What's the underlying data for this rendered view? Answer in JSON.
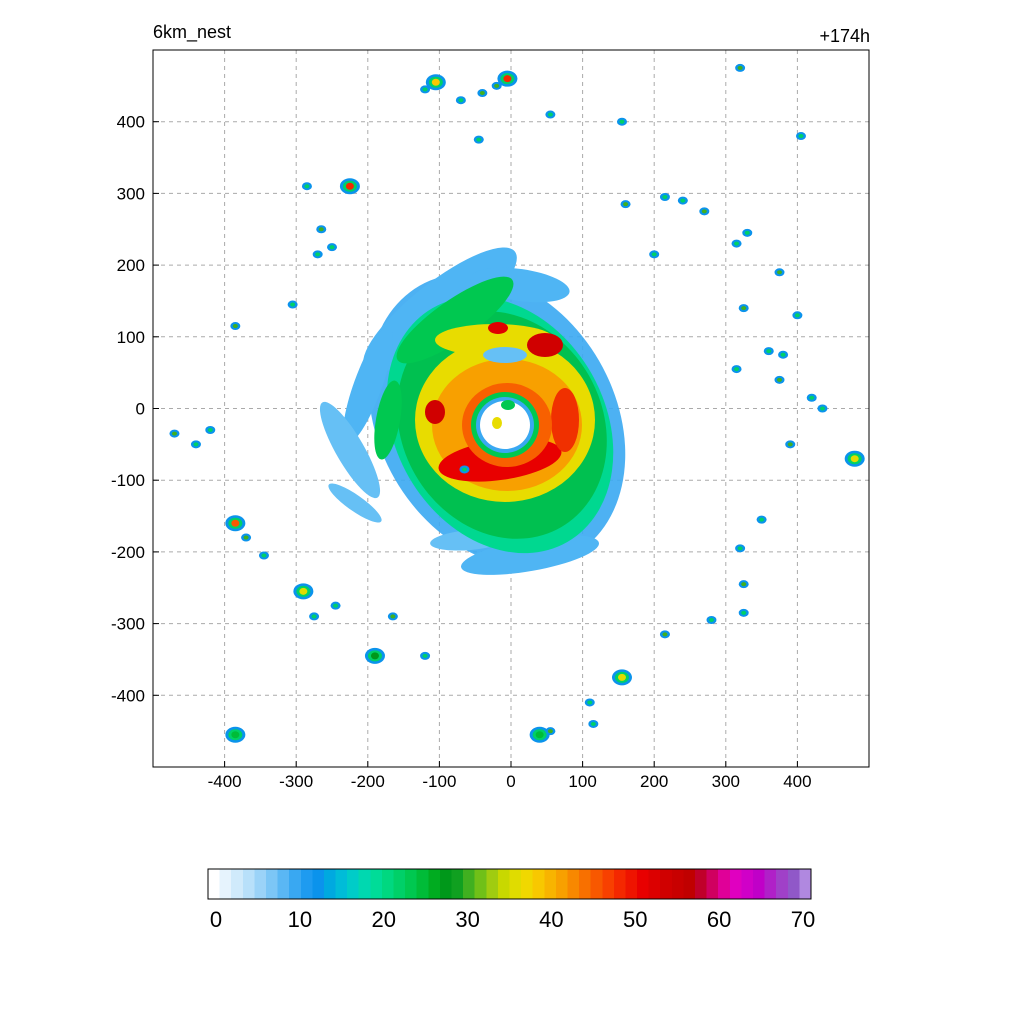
{
  "header": {
    "left_title": "6km_nest",
    "right_title": "+174h"
  },
  "chart_data": {
    "type": "heatmap",
    "title": "6km_nest",
    "forecast_hour_label": "+174h",
    "xlabel": "",
    "ylabel": "",
    "xlim": [
      -500,
      500
    ],
    "ylim": [
      -500,
      500
    ],
    "x_ticks": [
      -400,
      -300,
      -200,
      -100,
      0,
      100,
      200,
      300,
      400
    ],
    "y_ticks": [
      -400,
      -300,
      -200,
      -100,
      0,
      100,
      200,
      300,
      400
    ],
    "grid": true,
    "colorbar": {
      "min": 0,
      "max": 70,
      "tick_values": [
        0,
        10,
        20,
        30,
        40,
        50,
        60,
        70
      ],
      "colors": [
        "#ffffff",
        "#e6f3fd",
        "#d0eafb",
        "#b8e0fa",
        "#9bd3f8",
        "#7cc6f6",
        "#5ab7f4",
        "#39a8f2",
        "#1e9bf0",
        "#0b93ec",
        "#00a9e0",
        "#00bcd8",
        "#00ccc8",
        "#00d8b0",
        "#00dc98",
        "#00d880",
        "#00d068",
        "#00c850",
        "#00bc38",
        "#00ac20",
        "#00981a",
        "#10a020",
        "#40b020",
        "#70c018",
        "#a0cc10",
        "#c8d800",
        "#e0dc00",
        "#f0d800",
        "#f8c800",
        "#f8b400",
        "#f8a000",
        "#f88800",
        "#f87000",
        "#f85800",
        "#f84000",
        "#f42800",
        "#ee1400",
        "#e80000",
        "#dc0000",
        "#d00000",
        "#c80000",
        "#c00000",
        "#c0002a",
        "#d00060",
        "#e00098",
        "#e000c0",
        "#d000c8",
        "#c000c8",
        "#b020c8",
        "#a040c8",
        "#9058c8",
        "#b088e0"
      ]
    },
    "features": {
      "storm_center": [
        0,
        0
      ],
      "eye_radius_km": 40,
      "max_value_near_core": 52,
      "scattered_cells": [
        {
          "x": -225,
          "y": 310,
          "max": 48
        },
        {
          "x": -105,
          "y": 455,
          "max": 38
        },
        {
          "x": -5,
          "y": 460,
          "max": 48
        },
        {
          "x": -385,
          "y": -160,
          "max": 45
        },
        {
          "x": -290,
          "y": -255,
          "max": 35
        },
        {
          "x": 155,
          "y": -375,
          "max": 35
        },
        {
          "x": 480,
          "y": -70,
          "max": 35
        },
        {
          "x": -190,
          "y": -345,
          "max": 28
        },
        {
          "x": 40,
          "y": -455,
          "max": 25
        },
        {
          "x": -385,
          "y": -455,
          "max": 25
        }
      ]
    }
  }
}
